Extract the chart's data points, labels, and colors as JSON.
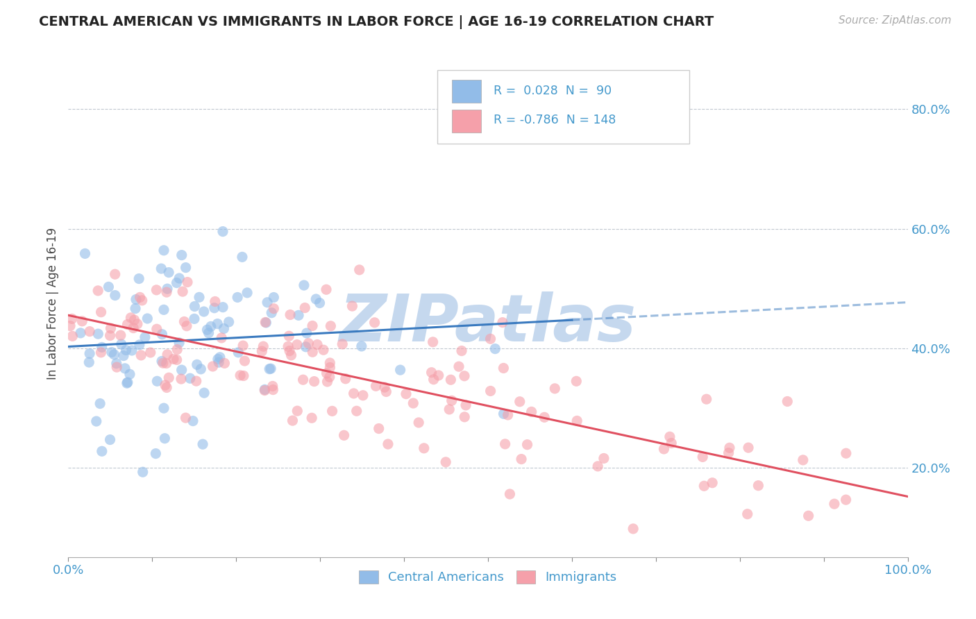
{
  "title": "CENTRAL AMERICAN VS IMMIGRANTS IN LABOR FORCE | AGE 16-19 CORRELATION CHART",
  "source": "Source: ZipAtlas.com",
  "ylabel": "In Labor Force | Age 16-19",
  "blue_label": "Central Americans",
  "pink_label": "Immigrants",
  "blue_R": 0.028,
  "blue_N": 90,
  "pink_R": -0.786,
  "pink_N": 148,
  "blue_color": "#92bce8",
  "pink_color": "#f5a0aa",
  "blue_line_color": "#3a7abf",
  "pink_line_color": "#e05060",
  "title_color": "#222222",
  "axis_color": "#4499cc",
  "grid_color": "#c0c8d0",
  "watermark_color": "#c5d8ee",
  "xlim": [
    0.0,
    1.0
  ],
  "ylim": [
    0.05,
    0.9
  ],
  "xticks": [
    0.0,
    0.1,
    0.2,
    0.3,
    0.4,
    0.5,
    0.6,
    0.7,
    0.8,
    0.9,
    1.0
  ],
  "yticks": [
    0.2,
    0.4,
    0.6,
    0.8
  ],
  "blue_seed": 42,
  "pink_seed": 77,
  "blue_intercept": 0.4,
  "blue_slope": 0.01,
  "pink_intercept": 0.46,
  "pink_slope": -0.32
}
